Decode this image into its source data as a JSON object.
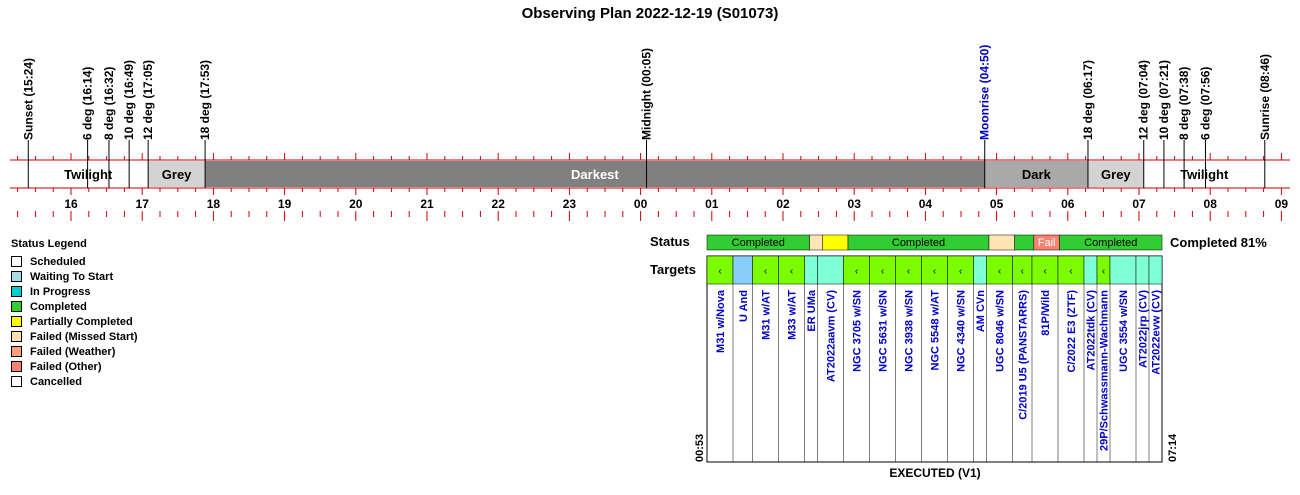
{
  "title": "Observing Plan 2022-12-19 (S01073)",
  "chart_data": {
    "type": "timeline",
    "time_axis": {
      "start": "15:24",
      "end": "09:00",
      "hour_ticks": [
        "16",
        "17",
        "18",
        "19",
        "20",
        "21",
        "22",
        "23",
        "00",
        "01",
        "02",
        "03",
        "04",
        "05",
        "06",
        "07",
        "08",
        "09"
      ]
    },
    "events": [
      {
        "label": "Sunset (15:24)",
        "time": "15:24",
        "color": "#000000"
      },
      {
        "label": "6 deg (16:14)",
        "time": "16:14",
        "color": "#000000"
      },
      {
        "label": "8 deg (16:32)",
        "time": "16:32",
        "color": "#000000"
      },
      {
        "label": "10 deg (16:49)",
        "time": "16:49",
        "color": "#000000"
      },
      {
        "label": "12 deg (17:05)",
        "time": "17:05",
        "color": "#000000"
      },
      {
        "label": "18 deg (17:53)",
        "time": "17:53",
        "color": "#000000"
      },
      {
        "label": "Midnight (00:05)",
        "time": "00:05",
        "color": "#000000"
      },
      {
        "label": "Moonrise (04:50)",
        "time": "04:50",
        "color": "#0000cc"
      },
      {
        "label": "18 deg (06:17)",
        "time": "06:17",
        "color": "#000000"
      },
      {
        "label": "12 deg (07:04)",
        "time": "07:04",
        "color": "#000000"
      },
      {
        "label": "10 deg (07:21)",
        "time": "07:21",
        "color": "#000000"
      },
      {
        "label": "8 deg (07:38)",
        "time": "07:38",
        "color": "#000000"
      },
      {
        "label": "6 deg (07:56)",
        "time": "07:56",
        "color": "#000000"
      },
      {
        "label": "Sunrise (08:46)",
        "time": "08:46",
        "color": "#000000"
      }
    ],
    "sky_periods": [
      {
        "label": "Twilight",
        "start": "15:24",
        "end": "17:05",
        "color": "#ffffff",
        "text_color": "#000000"
      },
      {
        "label": "Grey",
        "start": "17:05",
        "end": "17:53",
        "color": "#d3d3d3",
        "text_color": "#000000"
      },
      {
        "label": "Darkest",
        "start": "17:53",
        "end": "04:50",
        "color": "#808080",
        "text_color": "#ffffff"
      },
      {
        "label": "Dark",
        "start": "04:50",
        "end": "06:17",
        "color": "#a9a9a9",
        "text_color": "#000000"
      },
      {
        "label": "Grey",
        "start": "06:17",
        "end": "07:04",
        "color": "#d3d3d3",
        "text_color": "#000000"
      },
      {
        "label": "Twilight",
        "start": "07:04",
        "end": "08:46",
        "color": "#ffffff",
        "text_color": "#000000"
      }
    ],
    "status_label": "Status",
    "targets_label": "Targets",
    "status_segments": [
      {
        "label": "Completed",
        "units": 4,
        "status": "completed"
      },
      {
        "label": "",
        "units": 0.5,
        "status": "missed"
      },
      {
        "label": "",
        "units": 1,
        "status": "partial"
      },
      {
        "label": "Completed",
        "units": 5.5,
        "status": "completed"
      },
      {
        "label": "",
        "units": 1,
        "status": "missed"
      },
      {
        "label": "",
        "units": 0.75,
        "status": "completed"
      },
      {
        "label": "Fail",
        "units": 1,
        "status": "failed_other"
      },
      {
        "label": "Completed",
        "units": 4,
        "status": "completed"
      }
    ],
    "targets": [
      {
        "name": "M31 w/Nova",
        "units": 1,
        "status": "completed",
        "mark": "‹"
      },
      {
        "name": "U And",
        "units": 0.75,
        "status": "waiting",
        "mark": ""
      },
      {
        "name": "M31 w/AT",
        "units": 1,
        "status": "completed",
        "mark": "‹"
      },
      {
        "name": "M33 w/AT",
        "units": 1,
        "status": "completed",
        "mark": "‹"
      },
      {
        "name": "ER UMa",
        "units": 0.5,
        "status": "in_progress",
        "mark": ""
      },
      {
        "name": "AT2022aavm (CV)",
        "units": 1,
        "status": "in_progress",
        "mark": ""
      },
      {
        "name": "NGC 3705 w/SN",
        "units": 1,
        "status": "completed",
        "mark": "‹"
      },
      {
        "name": "NGC 5631 w/SN",
        "units": 1,
        "status": "completed",
        "mark": "‹"
      },
      {
        "name": "NGC 3938 w/SN",
        "units": 1,
        "status": "completed",
        "mark": "‹"
      },
      {
        "name": "NGC 5548 w/AT",
        "units": 1,
        "status": "completed",
        "mark": "‹"
      },
      {
        "name": "NGC 4340 w/SN",
        "units": 1,
        "status": "completed",
        "mark": "‹"
      },
      {
        "name": "AM CVn",
        "units": 0.5,
        "status": "in_progress",
        "mark": ""
      },
      {
        "name": "UGC 8046 w/SN",
        "units": 1,
        "status": "completed",
        "mark": "‹"
      },
      {
        "name": "C/2019 U5 (PANSTARRS)",
        "units": 0.75,
        "status": "completed",
        "mark": "‹"
      },
      {
        "name": "81P/Wild",
        "units": 1,
        "status": "completed",
        "mark": "‹"
      },
      {
        "name": "C/2022 E3 (ZTF)",
        "units": 1,
        "status": "completed",
        "mark": "‹"
      },
      {
        "name": "AT2022tdk (CV)",
        "units": 0.5,
        "status": "in_progress",
        "mark": ""
      },
      {
        "name": "29P/Schwassmann-Wachmann",
        "units": 0.5,
        "status": "completed",
        "mark": "‹"
      },
      {
        "name": "UGC 3554 w/SN",
        "units": 1,
        "status": "in_progress",
        "mark": ""
      },
      {
        "name": "AT2022jrp (CV)",
        "units": 0.5,
        "status": "in_progress",
        "mark": ""
      },
      {
        "name": "AT2022evw (CV)",
        "units": 0.5,
        "status": "in_progress",
        "mark": ""
      }
    ],
    "summary": "Completed 81%",
    "exec_start": "00:53",
    "exec_end": "07:14",
    "footer": "EXECUTED (V1)"
  },
  "status_colors": {
    "scheduled": "#ffffff",
    "waiting": "#87cefa",
    "in_progress": "#7fffd4",
    "completed": "#32cd32",
    "partial": "#ffff00",
    "missed": "#ffe4b5",
    "failed_weather": "#ffa07a",
    "failed_other": "#fa8072",
    "cancelled": "#ffffff",
    "target_completed": "#7cfc00"
  },
  "legend": {
    "title": "Status Legend",
    "items": [
      {
        "label": "Scheduled",
        "color": "#ffffff"
      },
      {
        "label": "Waiting To Start",
        "color": "#add8e6"
      },
      {
        "label": "In Progress",
        "color": "#00ced1"
      },
      {
        "label": "Completed",
        "color": "#32cd32"
      },
      {
        "label": "Partially Completed",
        "color": "#ffff00"
      },
      {
        "label": "Failed (Missed Start)",
        "color": "#ffdead"
      },
      {
        "label": "Failed (Weather)",
        "color": "#ffa07a"
      },
      {
        "label": "Failed (Other)",
        "color": "#fa8072"
      },
      {
        "label": "Cancelled",
        "color": "#ffffff"
      }
    ]
  },
  "colors": {
    "axis_red": "#cc0000",
    "target_text": "#0000cc"
  }
}
